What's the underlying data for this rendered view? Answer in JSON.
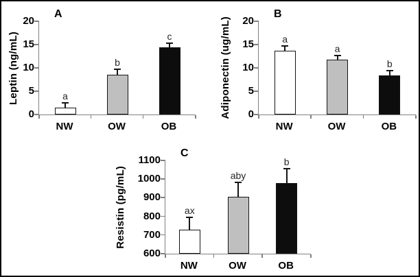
{
  "chart_data": [
    {
      "type": "bar",
      "panel_label": "A",
      "ylabel": "Leptin (ng/mL)",
      "categories": [
        "NW",
        "OW",
        "OB"
      ],
      "values": [
        1.5,
        8.6,
        14.4
      ],
      "errors_plus": [
        1.2,
        1.2,
        1.1
      ],
      "significance_labels": [
        "a",
        "b",
        "c"
      ],
      "ylim": [
        0,
        20
      ],
      "yticks": [
        0,
        5,
        10,
        15,
        20
      ],
      "bar_fills": [
        "#ffffff",
        "#bfbfbf",
        "#0d0d0d"
      ],
      "grid": false,
      "legend": false
    },
    {
      "type": "bar",
      "panel_label": "B",
      "ylabel": "Adiponectin (ug/mL)",
      "categories": [
        "NW",
        "OW",
        "OB"
      ],
      "values": [
        13.7,
        11.8,
        8.4
      ],
      "errors_plus": [
        1.1,
        1.0,
        1.1
      ],
      "significance_labels": [
        "a",
        "a",
        "b"
      ],
      "ylim": [
        0,
        20
      ],
      "yticks": [
        0,
        5,
        10,
        15,
        20
      ],
      "bar_fills": [
        "#ffffff",
        "#bfbfbf",
        "#0d0d0d"
      ],
      "grid": false,
      "legend": false
    },
    {
      "type": "bar",
      "panel_label": "C",
      "ylabel": "Resistin (pg/mL)",
      "categories": [
        "NW",
        "OW",
        "OB"
      ],
      "values": [
        730,
        905,
        980
      ],
      "errors_plus": [
        70,
        80,
        80
      ],
      "significance_labels": [
        "ax",
        "aby",
        "b"
      ],
      "ylim": [
        600,
        1100
      ],
      "yticks": [
        600,
        700,
        800,
        900,
        1000,
        1100
      ],
      "bar_fills": [
        "#ffffff",
        "#bfbfbf",
        "#0d0d0d"
      ],
      "grid": false,
      "legend": false
    }
  ]
}
